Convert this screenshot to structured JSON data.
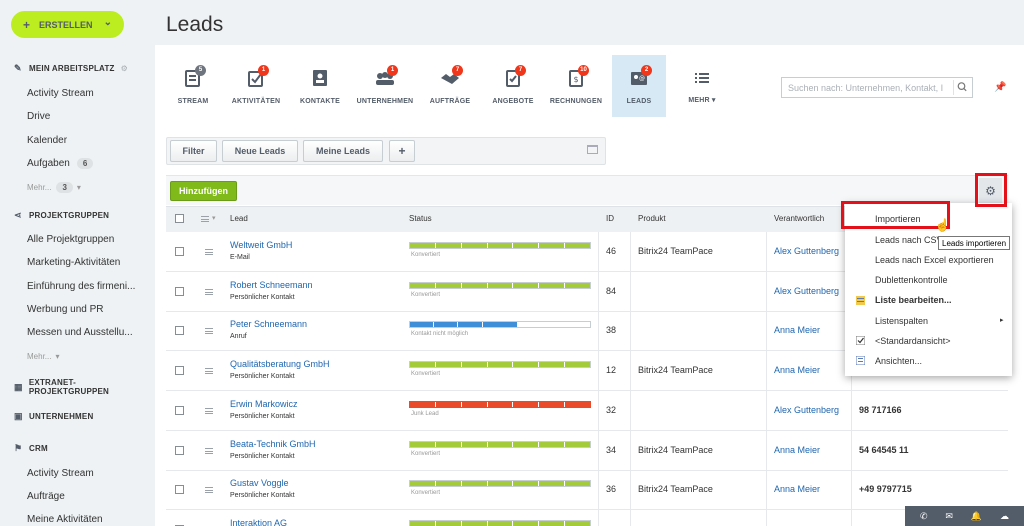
{
  "sidebar": {
    "create_label": "ERSTELLEN",
    "sections": [
      {
        "title": "MEIN ARBEITSPLATZ",
        "icon": "pin-icon"
      },
      {
        "title": "PROJEKTGRUPPEN",
        "icon": "share-icon"
      },
      {
        "title": "EXTRANET-PROJEKTGRUPPEN",
        "icon": "extranet-icon"
      },
      {
        "title": "UNTERNEHMEN",
        "icon": "company-icon"
      },
      {
        "title": "CRM",
        "icon": "flag-icon"
      }
    ],
    "workspace_items": [
      "Activity Stream",
      "Drive",
      "Kalender",
      "Aufgaben"
    ],
    "tasks_badge": "6",
    "workspace_more": "Mehr...",
    "workspace_more_badge": "3",
    "group_items": [
      "Alle Projektgruppen",
      "Marketing-Aktivitäten",
      "Einführung des firmeni...",
      "Werbung und PR",
      "Messen und Ausstellu..."
    ],
    "group_more": "Mehr...",
    "crm_items": [
      "Activity Stream",
      "Aufträge",
      "Meine Aktivitäten"
    ]
  },
  "page": {
    "title": "Leads"
  },
  "tabs": [
    {
      "label": "STREAM",
      "count": "5",
      "count_style": "grey",
      "icon": "stream-icon"
    },
    {
      "label": "AKTIVITÄTEN",
      "count": "1",
      "icon": "activities-icon"
    },
    {
      "label": "KONTAKTE",
      "count": "",
      "icon": "contacts-icon"
    },
    {
      "label": "UNTERNEHMEN",
      "count": "1",
      "icon": "companies-icon"
    },
    {
      "label": "AUFTRÄGE",
      "count": "7",
      "icon": "deals-icon"
    },
    {
      "label": "ANGEBOTE",
      "count": "7",
      "icon": "quotes-icon"
    },
    {
      "label": "RECHNUNGEN",
      "count": "10",
      "icon": "invoices-icon"
    },
    {
      "label": "LEADS",
      "count": "2",
      "icon": "leads-icon",
      "active": true
    },
    {
      "label": "MEHR ▾",
      "count": "",
      "icon": "more-list-icon"
    }
  ],
  "search": {
    "placeholder": "Suchen nach: Unternehmen, Kontakt, I"
  },
  "filter_bar": {
    "filter": "Filter",
    "new_leads": "Neue Leads",
    "my_leads": "Meine Leads",
    "add_filter": "+"
  },
  "actions": {
    "add": "Hinzufügen"
  },
  "table": {
    "headers": {
      "lead": "Lead",
      "status": "Status",
      "id": "ID",
      "product": "Produkt",
      "responsible": "Verantwortlich"
    },
    "rows": [
      {
        "name": "Weltweit GmbH",
        "source": "E-Mail",
        "status": "Konvertiert",
        "status_type": "converted",
        "id": "46",
        "product": "Bitrix24 TeamPace",
        "responsible": "Alex Guttenberg",
        "phone": ""
      },
      {
        "name": "Robert Schneemann",
        "source": "Persönlicher Kontakt",
        "status": "Konvertiert",
        "status_type": "converted",
        "id": "84",
        "product": "",
        "responsible": "Alex Guttenberg",
        "phone": ""
      },
      {
        "name": "Peter Schneemann",
        "source": "Anruf",
        "status": "Kontakt nicht möglich",
        "status_type": "progress",
        "id": "38",
        "product": "",
        "responsible": "Anna Meier",
        "phone": ""
      },
      {
        "name": "Qualitätsberatung GmbH",
        "source": "Persönlicher Kontakt",
        "status": "Konvertiert",
        "status_type": "converted",
        "id": "12",
        "product": "Bitrix24 TeamPace",
        "responsible": "Anna Meier",
        "phone": ""
      },
      {
        "name": "Erwin Markowicz",
        "source": "Persönlicher Kontakt",
        "status": "Junk Lead",
        "status_type": "junk",
        "id": "32",
        "product": "",
        "responsible": "Alex Guttenberg",
        "phone": "98 717166"
      },
      {
        "name": "Beata-Technik GmbH",
        "source": "Persönlicher Kontakt",
        "status": "Konvertiert",
        "status_type": "converted",
        "id": "34",
        "product": "Bitrix24 TeamPace",
        "responsible": "Anna Meier",
        "phone": "54 64545 11"
      },
      {
        "name": "Gustav Voggle",
        "source": "Persönlicher Kontakt",
        "status": "Konvertiert",
        "status_type": "converted",
        "id": "36",
        "product": "Bitrix24 TeamPace",
        "responsible": "Anna Meier",
        "phone": "+49 9797715"
      },
      {
        "name": "Interaktion AG",
        "source": "",
        "status": "",
        "status_type": "converted",
        "id": "",
        "product": "",
        "responsible": "",
        "phone": ""
      }
    ]
  },
  "settings_menu": {
    "items": [
      {
        "label": "Importieren",
        "icon": ""
      },
      {
        "label": "Leads nach CSV",
        "icon": ""
      },
      {
        "label": "Leads nach Excel exportieren",
        "icon": ""
      },
      {
        "label": "Dublettenkontrolle",
        "icon": ""
      },
      {
        "label": "Liste bearbeiten...",
        "icon": "edit-list-icon",
        "bold": true
      },
      {
        "label": "Listenspalten",
        "icon": "",
        "submenu": true
      },
      {
        "label": "<Standardansicht>",
        "icon": "check-icon"
      },
      {
        "label": "Ansichten...",
        "icon": "views-icon"
      }
    ],
    "tooltip": "Leads importieren"
  },
  "colors": {
    "converted": "#a4cc3a",
    "progress_fill": "#3e8fd8",
    "junk": "#ea4b2a",
    "accent": "#bbed21"
  }
}
